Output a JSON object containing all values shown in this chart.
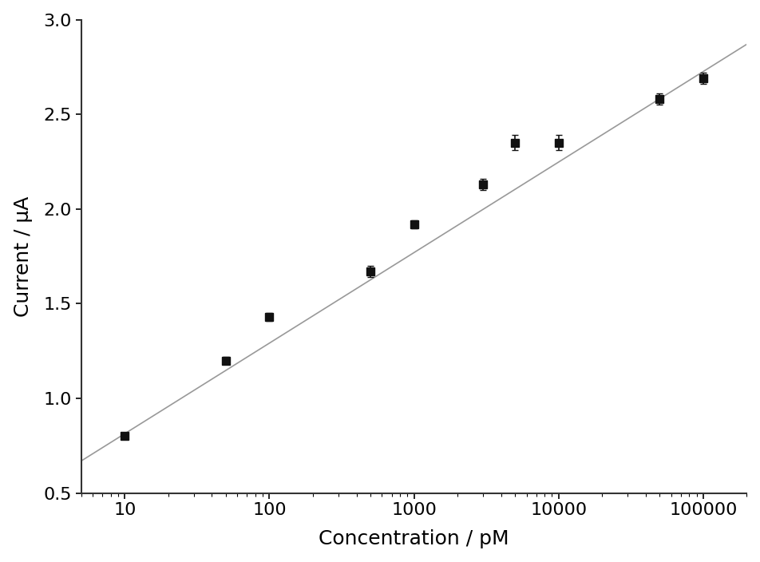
{
  "x_data": [
    10,
    50,
    100,
    500,
    1000,
    3000,
    5000,
    10000,
    50000,
    100000
  ],
  "y_data": [
    0.8,
    1.2,
    1.43,
    1.67,
    1.92,
    2.13,
    2.35,
    2.35,
    2.58,
    2.69
  ],
  "y_err": [
    0.01,
    0.02,
    0.02,
    0.03,
    0.02,
    0.03,
    0.04,
    0.04,
    0.03,
    0.03
  ],
  "fit_x_start": 5,
  "fit_x_end": 200000,
  "fit_y_start": 0.67,
  "fit_y_end": 2.87,
  "xlabel": "Concentration / pM",
  "ylabel": "Current / μA",
  "xlim": [
    5,
    200000
  ],
  "ylim": [
    0.5,
    3.0
  ],
  "yticks": [
    0.5,
    1.0,
    1.5,
    2.0,
    2.5,
    3.0
  ],
  "xtick_positions": [
    10,
    100,
    1000,
    10000,
    100000
  ],
  "xtick_labels": [
    "10",
    "100",
    "1000",
    "10000",
    "100000"
  ],
  "marker_color": "#111111",
  "line_color": "#999999",
  "marker_size": 7,
  "line_width": 1.2,
  "font_size": 16,
  "label_font_size": 18,
  "bg_color": "#ffffff",
  "spine_color": "#333333",
  "capsize": 3,
  "elinewidth": 1.2,
  "capthick": 1.2
}
